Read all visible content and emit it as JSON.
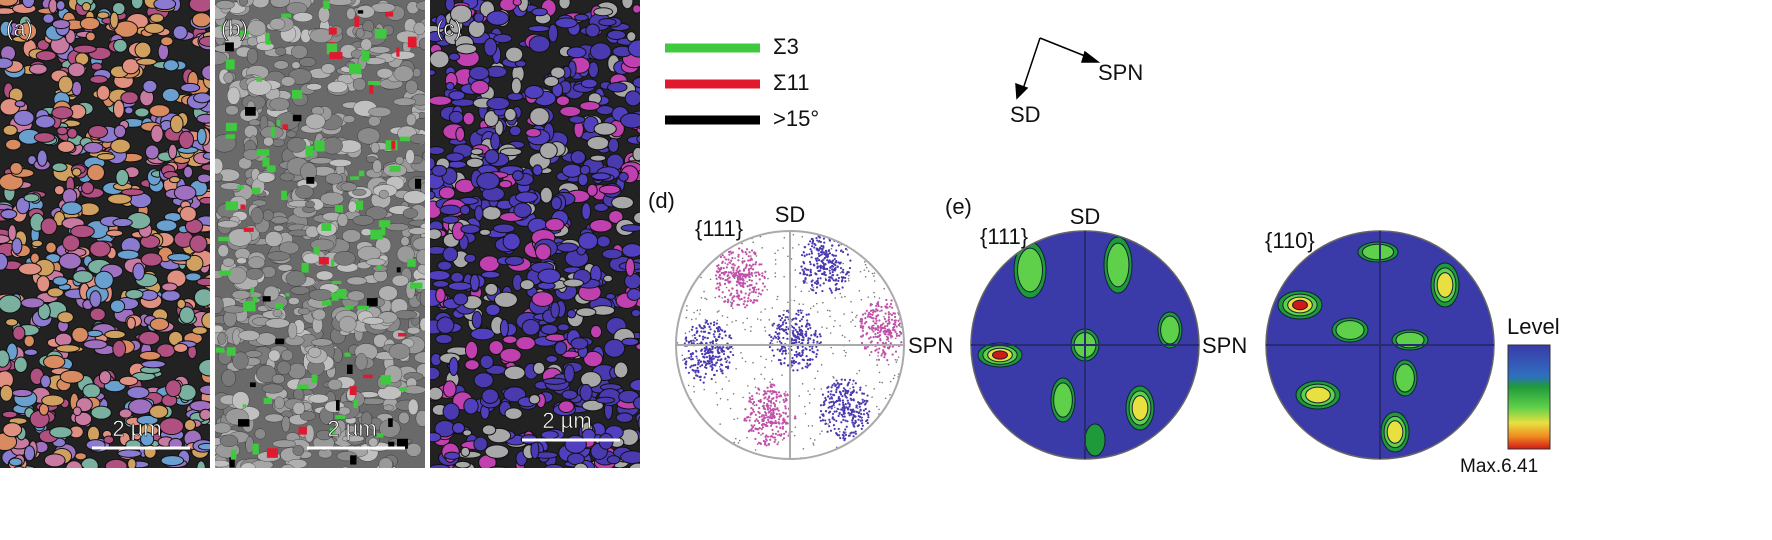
{
  "panels": [
    {
      "label": "(a)",
      "scale_bar": "2 µm"
    },
    {
      "label": "(b)",
      "scale_bar": "2 µm"
    },
    {
      "label": "(c)",
      "scale_bar": "2 µm"
    }
  ],
  "legend": {
    "items": [
      {
        "label": "Σ3",
        "color": "#3ec93e"
      },
      {
        "label": "Σ11",
        "color": "#e0192e"
      },
      {
        "label": ">15°",
        "color": "#000000"
      }
    ]
  },
  "axes": {
    "horizontal": "SPN",
    "vertical": "SD"
  },
  "pole_figures": [
    {
      "label": "(d)",
      "plane": "{111}",
      "top": "SD",
      "right": "SPN"
    },
    {
      "label": "(e)",
      "plane": "{111}",
      "top": "SD",
      "right": "SPN"
    },
    {
      "plane": "{110}"
    }
  ],
  "colorbar": {
    "title": "Level",
    "max_label": "Max.6.41"
  }
}
